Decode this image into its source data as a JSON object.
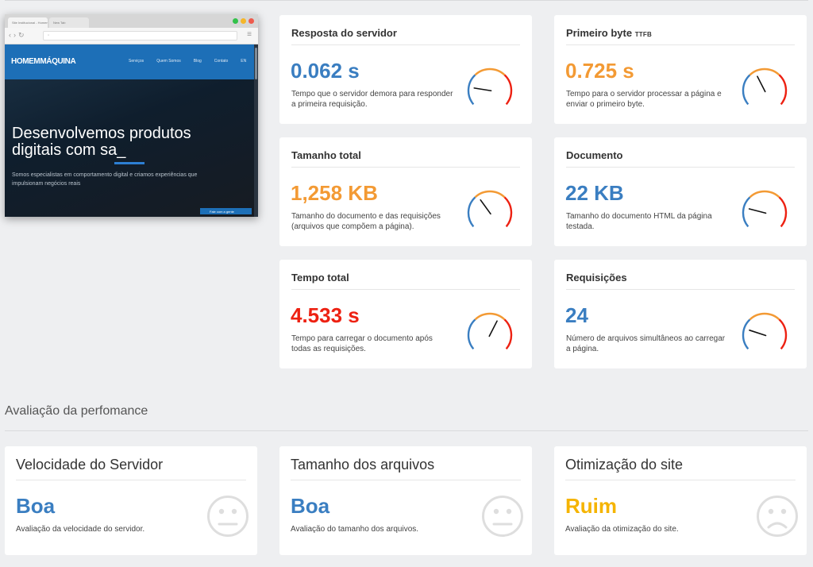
{
  "preview": {
    "tabs": [
      "Site Institucional - HomemMáquina",
      "New Tab"
    ],
    "logo": "HOMEMMÁQUINA",
    "nav_links": [
      "Serviços",
      "Quem Somos",
      "Blog",
      "Contato",
      "EN"
    ],
    "headline": "Desenvolvemos produtos digitais com sa_",
    "subtitle": "Somos especialistas em comportamento digital e criamos experiências que impulsionam negócios reais",
    "cta_label": "Fale com a gente",
    "colors": {
      "nav": "#1d6fb7",
      "hero_dark": "#0f1e2d"
    }
  },
  "metrics": [
    {
      "title": "Resposta do servidor",
      "title_suffix": "",
      "value": "0.062 s",
      "value_color": "blue",
      "description": "Tempo que o servidor demora para responder a primeira requisição.",
      "gauge_level": 0.05
    },
    {
      "title": "Primeiro byte",
      "title_suffix": "TTFB",
      "value": "0.725 s",
      "value_color": "orange",
      "description": "Tempo para o servidor processar a página e enviar o primeiro byte.",
      "gauge_level": 0.35
    },
    {
      "title": "Tamanho total",
      "title_suffix": "",
      "value": "1,258 KB",
      "value_color": "orange",
      "description": "Tamanho do documento e das requisições (arquivos que compõem a página).",
      "gauge_level": 0.3
    },
    {
      "title": "Documento",
      "title_suffix": "",
      "value": "22 KB",
      "value_color": "blue",
      "description": "Tamanho do documento HTML da página testada.",
      "gauge_level": 0.08
    },
    {
      "title": "Tempo total",
      "title_suffix": "",
      "value": "4.533 s",
      "value_color": "red",
      "description": "Tempo para carregar o documento após todas as requisições.",
      "gauge_level": 0.65
    },
    {
      "title": "Requisições",
      "title_suffix": "",
      "value": "24",
      "value_color": "blue",
      "description": "Número de arquivos simultâneos ao carregar a página.",
      "gauge_level": 0.1
    }
  ],
  "section": {
    "title": "Avaliação da perfomance"
  },
  "performance": [
    {
      "title": "Velocidade do Servidor",
      "value": "Boa",
      "value_color": "blue",
      "description": "Avaliação da velocidade do servidor.",
      "face": "neutral-face-icon"
    },
    {
      "title": "Tamanho dos arquivos",
      "value": "Boa",
      "value_color": "blue",
      "description": "Avaliação do tamanho dos arquivos.",
      "face": "neutral-face-icon"
    },
    {
      "title": "Otimização do site",
      "value": "Ruim",
      "value_color": "yellow",
      "description": "Avaliação da otimização do site.",
      "face": "sad-face-icon"
    }
  ],
  "colors": {
    "blue": "#3a7ec1",
    "orange": "#f39a34",
    "red": "#ed2112",
    "yellow": "#f5b400"
  }
}
